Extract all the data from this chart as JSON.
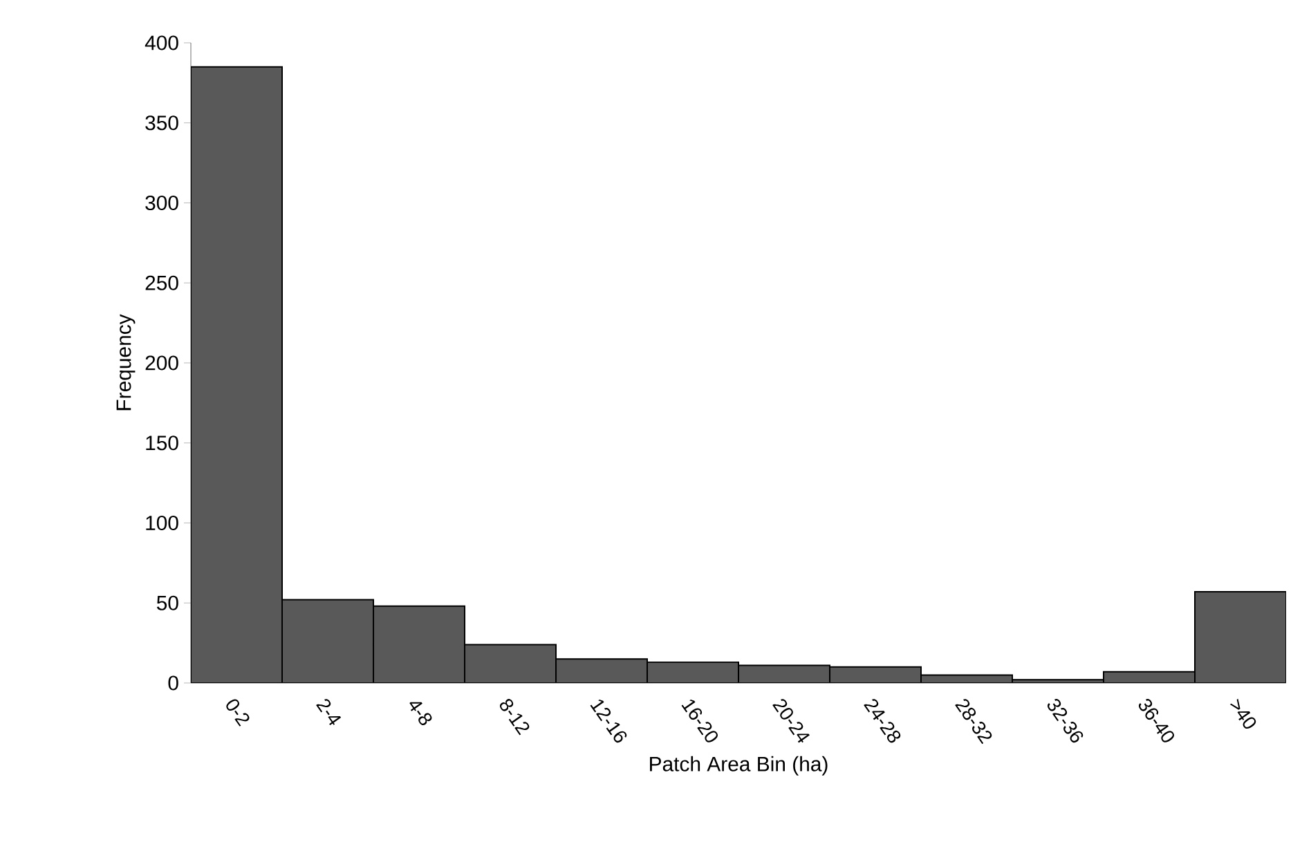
{
  "chart_data": {
    "type": "bar",
    "xlabel": "Patch Area Bin (ha)",
    "ylabel": "Frequency",
    "categories": [
      "0-2",
      "2-4",
      "4-8",
      "8-12",
      "12-16",
      "16-20",
      "20-24",
      "24-28",
      "28-32",
      "32-36",
      "36-40",
      ">40"
    ],
    "values": [
      385,
      52,
      48,
      24,
      15,
      13,
      11,
      10,
      5,
      2,
      7,
      57
    ],
    "color": "#595959",
    "ylim": [
      0,
      400
    ],
    "yticks": [
      0,
      50,
      100,
      150,
      200,
      250,
      300,
      350,
      400
    ],
    "grid": false
  }
}
